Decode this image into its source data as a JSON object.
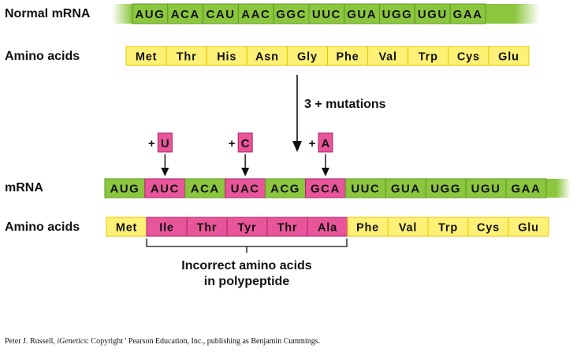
{
  "labels": {
    "normal_mrna": "Normal mRNA",
    "amino_acids_top": "Amino acids",
    "mrna": "mRNA",
    "amino_acids_bottom": "Amino acids",
    "mutations": "3 + mutations"
  },
  "normal": {
    "codons": [
      "AUG",
      "ACA",
      "CAU",
      "AAC",
      "GGC",
      "UUC",
      "GUA",
      "UGG",
      "UGU",
      "GAA"
    ],
    "amino_acids": [
      "Met",
      "Thr",
      "His",
      "Asn",
      "Gly",
      "Phe",
      "Val",
      "Trp",
      "Cys",
      "Glu"
    ]
  },
  "mutant": {
    "codons": [
      {
        "text": "AUG",
        "mutant": false
      },
      {
        "text": "AUC",
        "mutant": true
      },
      {
        "text": "ACA",
        "mutant": false
      },
      {
        "text": "UAC",
        "mutant": true
      },
      {
        "text": "ACG",
        "mutant": false
      },
      {
        "text": "GCA",
        "mutant": true
      },
      {
        "text": "UUC",
        "mutant": false
      },
      {
        "text": "GUA",
        "mutant": false
      },
      {
        "text": "UGG",
        "mutant": false
      },
      {
        "text": "UGU",
        "mutant": false
      },
      {
        "text": "GAA",
        "mutant": false
      }
    ],
    "amino_acids": [
      {
        "text": "Met",
        "incorrect": false
      },
      {
        "text": "Ile",
        "incorrect": true
      },
      {
        "text": "Thr",
        "incorrect": true
      },
      {
        "text": "Tyr",
        "incorrect": true
      },
      {
        "text": "Thr",
        "incorrect": true
      },
      {
        "text": "Ala",
        "incorrect": true
      },
      {
        "text": "Phe",
        "incorrect": false
      },
      {
        "text": "Val",
        "incorrect": false
      },
      {
        "text": "Trp",
        "incorrect": false
      },
      {
        "text": "Cys",
        "incorrect": false
      },
      {
        "text": "Glu",
        "incorrect": false
      }
    ]
  },
  "insertions": [
    {
      "sign": "+",
      "base": "U",
      "codon_index": 1
    },
    {
      "sign": "+",
      "base": "C",
      "codon_index": 3
    },
    {
      "sign": "+",
      "base": "A",
      "codon_index": 5
    }
  ],
  "caption": {
    "line1": "Incorrect amino acids",
    "line2": "in polypeptide"
  },
  "credit": {
    "author": "Peter J. Russell, ",
    "title": "iGenetics",
    "rest": ": Copyright ' Pearson Education, Inc., publishing as Benjamin Cummings."
  },
  "colors": {
    "green": "#8cc63f",
    "green_dark": "#5a9a1e",
    "yellow": "#fff176",
    "yellow_border": "#e0c800",
    "pink": "#e8559a",
    "pink_border": "#a8246a",
    "ink": "#111111"
  }
}
